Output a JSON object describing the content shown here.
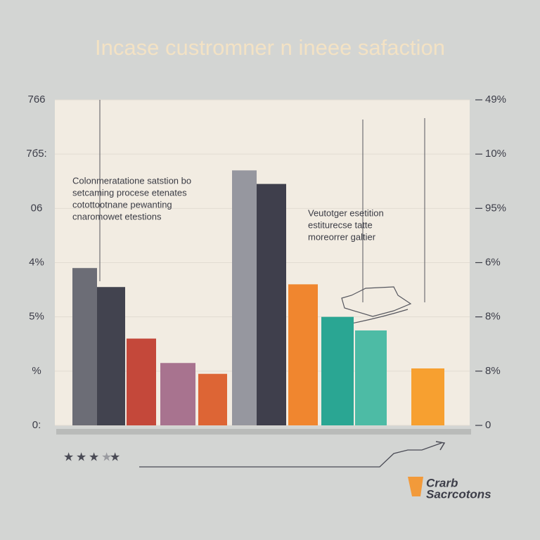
{
  "chart_data": {
    "type": "bar",
    "title": "Incase custromner n ineee safaction",
    "categories": [
      null,
      null,
      null,
      null,
      null,
      null,
      null,
      null,
      null,
      null,
      null
    ],
    "values": [
      2.9,
      2.55,
      1.6,
      1.15,
      0.95,
      4.7,
      4.45,
      2.6,
      2.0,
      1.75,
      1.05
    ],
    "colors": [
      "#6c6d76",
      "#42434f",
      "#c4483a",
      "#a8738f",
      "#dd6535",
      "#96979f",
      "#3f3f4c",
      "#f0862f",
      "#2aa693",
      "#4dbba5",
      "#f7a030"
    ],
    "ylim": [
      0,
      6
    ],
    "yticks": [
      {
        "value": 0,
        "label": "0:"
      },
      {
        "value": 1,
        "label": "%"
      },
      {
        "value": 2,
        "label": "5%"
      },
      {
        "value": 3,
        "label": "4%"
      },
      {
        "value": 4,
        "label": "06"
      },
      {
        "value": 5,
        "label": "7б5:"
      },
      {
        "value": 6,
        "label": "766"
      }
    ],
    "y2lim": [
      0,
      6
    ],
    "y2ticks": [
      {
        "value": 0,
        "label": "0"
      },
      {
        "value": 1,
        "label": "8%"
      },
      {
        "value": 2,
        "label": "8%"
      },
      {
        "value": 3,
        "label": "6%"
      },
      {
        "value": 4,
        "label": "95%"
      },
      {
        "value": 5,
        "label": "10%"
      },
      {
        "value": 6,
        "label": "49%"
      }
    ],
    "grid": true,
    "annotations": [
      {
        "lines": [
          "Colonmeratatione satstion bo",
          "setcaming procese etenates",
          "cotottootnane pewanting",
          "cnaromowet etestions"
        ]
      },
      {
        "lines": [
          "Veutotger esetition",
          "estiturecse tatte",
          "moreorrer galtier"
        ]
      }
    ],
    "logo": [
      "Crarb",
      "Sacrcotons"
    ]
  }
}
